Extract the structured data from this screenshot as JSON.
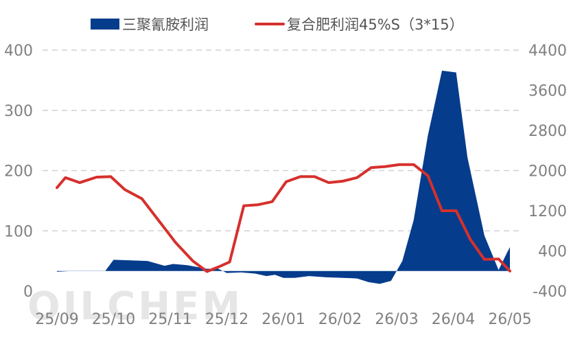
{
  "watermark": "OILCHEM",
  "chart_data": {
    "type": "area",
    "legend_position": "top",
    "grid": true,
    "x_tick_labels": [
      "25/09",
      "25/10",
      "25/11",
      "25/12",
      "26/01",
      "26/02",
      "26/03",
      "26/04",
      "26/05"
    ],
    "left_axis": {
      "ylim": [
        0,
        400
      ],
      "ticks": [
        "0",
        "100",
        "200",
        "300",
        "400"
      ]
    },
    "right_axis": {
      "ylim": [
        -400,
        4400
      ],
      "ticks": [
        "-400",
        "400",
        "1200",
        "2000",
        "2800",
        "3600",
        "4400"
      ]
    },
    "series": [
      {
        "name": "三聚氰胺利润",
        "type": "area",
        "axis": "left",
        "color": "#063c8c",
        "x_month_index": [
          0,
          0.2,
          0.5,
          0.85,
          1.0,
          1.3,
          1.6,
          1.9,
          2.05,
          2.3,
          2.65,
          2.85,
          3.0,
          3.25,
          3.5,
          3.7,
          3.85,
          4.0,
          4.2,
          4.45,
          4.75,
          5.05,
          5.3,
          5.5,
          5.7,
          5.9,
          6.1,
          6.3,
          6.55,
          6.8,
          7.05,
          7.25,
          7.55,
          7.8,
          7.95,
          8.0
        ],
        "values": [
          32,
          33,
          33,
          33,
          52,
          51,
          50,
          42,
          45,
          43,
          37,
          37,
          30,
          31,
          29,
          25,
          27,
          22,
          22,
          25,
          23,
          22,
          21,
          15,
          12,
          17,
          50,
          118,
          258,
          366,
          363,
          222,
          92,
          35,
          64,
          73
        ]
      },
      {
        "name": "复合肥利润45%S（3*15）",
        "type": "line",
        "axis": "right",
        "color": "#d6302c",
        "x_month_index": [
          0,
          0.15,
          0.4,
          0.7,
          0.95,
          1.2,
          1.5,
          1.8,
          2.1,
          2.4,
          2.65,
          2.85,
          3.05,
          3.3,
          3.55,
          3.8,
          4.05,
          4.3,
          4.55,
          4.8,
          5.05,
          5.3,
          5.55,
          5.8,
          6.05,
          6.3,
          6.55,
          6.8,
          7.05,
          7.3,
          7.55,
          7.8,
          8.0
        ],
        "values": [
          1660,
          1860,
          1760,
          1870,
          1880,
          1620,
          1440,
          1000,
          560,
          200,
          -10,
          80,
          180,
          1300,
          1320,
          1380,
          1780,
          1880,
          1880,
          1760,
          1790,
          1860,
          2060,
          2080,
          2120,
          2120,
          1900,
          1200,
          1200,
          630,
          230,
          240,
          0
        ]
      }
    ]
  }
}
